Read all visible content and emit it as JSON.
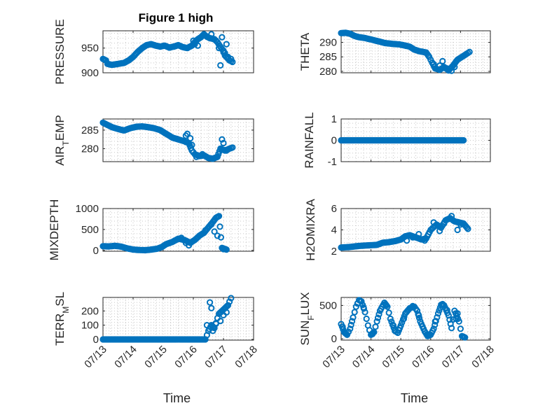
{
  "figure": {
    "title": "Figure 1 high"
  },
  "styles": {
    "marker_color": "#0072bd",
    "axis_color": "#262626",
    "grid_color": "#c8c8c8"
  },
  "chart_data": [
    {
      "id": "pressure",
      "type": "scatter",
      "title": "Figure 1 high",
      "ylabel": "PRESSURE",
      "xlabel": "",
      "show_x_ticklabels": false,
      "ylim": [
        900,
        985
      ],
      "yticks": [
        900,
        950
      ],
      "xlim": [
        0,
        5
      ],
      "xticks": [
        0,
        1,
        2,
        3,
        4,
        5
      ],
      "grid": true,
      "keys": [
        [
          0,
          928
        ],
        [
          0.1,
          925
        ],
        [
          0.15,
          918
        ],
        [
          0.3,
          916
        ],
        [
          0.5,
          918
        ],
        [
          0.7,
          920
        ],
        [
          0.85,
          925
        ],
        [
          1.0,
          932
        ],
        [
          1.15,
          942
        ],
        [
          1.3,
          950
        ],
        [
          1.45,
          956
        ],
        [
          1.6,
          958
        ],
        [
          1.75,
          955
        ],
        [
          1.9,
          953
        ],
        [
          2.05,
          955
        ],
        [
          2.2,
          951
        ],
        [
          2.35,
          953
        ],
        [
          2.5,
          956
        ],
        [
          2.65,
          952
        ],
        [
          2.8,
          950
        ],
        [
          2.95,
          955
        ],
        [
          3.05,
          962
        ],
        [
          3.15,
          968
        ],
        [
          3.25,
          972
        ],
        [
          3.35,
          978
        ],
        [
          3.45,
          973
        ],
        [
          3.55,
          970
        ],
        [
          3.7,
          968
        ],
        [
          3.8,
          962
        ],
        [
          3.95,
          948
        ],
        [
          4.05,
          935
        ],
        [
          4.2,
          925
        ],
        [
          4.3,
          922
        ]
      ],
      "extra_points": [
        [
          3.0,
          965
        ],
        [
          3.05,
          958
        ],
        [
          3.15,
          955
        ],
        [
          3.6,
          978
        ],
        [
          3.75,
          965
        ],
        [
          3.85,
          950
        ],
        [
          3.9,
          915
        ],
        [
          3.95,
          972
        ],
        [
          4.0,
          945
        ],
        [
          4.05,
          940
        ],
        [
          4.1,
          958
        ],
        [
          4.15,
          932
        ],
        [
          4.25,
          928
        ]
      ],
      "xticklabels": [
        "07/13",
        "07/14",
        "07/15",
        "07/16",
        "07/17",
        "07/18"
      ]
    },
    {
      "id": "theta",
      "type": "scatter",
      "title": "",
      "ylabel": "THETA",
      "xlabel": "",
      "show_x_ticklabels": false,
      "ylim": [
        279.5,
        294
      ],
      "yticks": [
        280,
        285,
        290
      ],
      "xlim": [
        0,
        5
      ],
      "xticks": [
        0,
        1,
        2,
        3,
        4,
        5
      ],
      "grid": true,
      "keys": [
        [
          0,
          293.2
        ],
        [
          0.15,
          293.3
        ],
        [
          0.3,
          293.0
        ],
        [
          0.45,
          292.2
        ],
        [
          0.6,
          291.8
        ],
        [
          0.8,
          291.5
        ],
        [
          1.0,
          291.0
        ],
        [
          1.2,
          290.5
        ],
        [
          1.45,
          289.8
        ],
        [
          1.7,
          289.5
        ],
        [
          1.95,
          289.3
        ],
        [
          2.1,
          289.0
        ],
        [
          2.3,
          288.5
        ],
        [
          2.45,
          287.5
        ],
        [
          2.6,
          287.0
        ],
        [
          2.75,
          286.7
        ],
        [
          2.85,
          286.5
        ],
        [
          2.95,
          285.0
        ],
        [
          3.05,
          283.0
        ],
        [
          3.15,
          281.0
        ],
        [
          3.3,
          280.5
        ],
        [
          3.45,
          281.5
        ],
        [
          3.6,
          280.3
        ],
        [
          3.75,
          282.0
        ],
        [
          3.9,
          284.0
        ],
        [
          4.05,
          285.0
        ],
        [
          4.2,
          286.0
        ],
        [
          4.3,
          286.7
        ]
      ],
      "extra_points": [
        [
          3.1,
          282.5
        ],
        [
          3.3,
          282.0
        ],
        [
          3.4,
          283.5
        ],
        [
          3.55,
          281.0
        ],
        [
          3.7,
          280.2
        ],
        [
          3.8,
          281.5
        ]
      ],
      "xticklabels": [
        "07/13",
        "07/14",
        "07/15",
        "07/16",
        "07/17",
        "07/18"
      ]
    },
    {
      "id": "air_temp",
      "type": "scatter",
      "title": "",
      "ylabel_main": "AIR",
      "ylabel_sub": "T",
      "ylabel_rest": "EMP",
      "xlabel": "",
      "show_x_ticklabels": false,
      "ylim": [
        276.5,
        288
      ],
      "yticks": [
        280,
        285
      ],
      "xlim": [
        0,
        5
      ],
      "xticks": [
        0,
        1,
        2,
        3,
        4,
        5
      ],
      "grid": true,
      "keys": [
        [
          0,
          287.0
        ],
        [
          0.15,
          286.4
        ],
        [
          0.3,
          285.8
        ],
        [
          0.5,
          285.3
        ],
        [
          0.7,
          284.9
        ],
        [
          0.9,
          285.5
        ],
        [
          1.1,
          285.9
        ],
        [
          1.3,
          286.0
        ],
        [
          1.5,
          285.8
        ],
        [
          1.7,
          285.5
        ],
        [
          1.9,
          285.0
        ],
        [
          2.1,
          284.0
        ],
        [
          2.3,
          283.0
        ],
        [
          2.5,
          282.5
        ],
        [
          2.7,
          282.0
        ],
        [
          2.85,
          281.5
        ],
        [
          2.95,
          279.5
        ],
        [
          3.05,
          278.5
        ],
        [
          3.2,
          278.0
        ],
        [
          3.35,
          278.2
        ],
        [
          3.5,
          277.5
        ],
        [
          3.65,
          277.3
        ],
        [
          3.8,
          277.8
        ],
        [
          3.9,
          280.0
        ],
        [
          4.05,
          279.5
        ],
        [
          4.2,
          280.0
        ],
        [
          4.3,
          280.3
        ]
      ],
      "extra_points": [
        [
          2.75,
          283.5
        ],
        [
          2.8,
          284.0
        ],
        [
          2.9,
          282.8
        ],
        [
          2.95,
          281.0
        ],
        [
          3.0,
          279.0
        ],
        [
          3.1,
          277.8
        ],
        [
          3.3,
          278.5
        ],
        [
          3.95,
          282.5
        ],
        [
          4.0,
          281.5
        ],
        [
          4.1,
          279.5
        ]
      ],
      "xticklabels": [
        "07/13",
        "07/14",
        "07/15",
        "07/16",
        "07/17",
        "07/18"
      ]
    },
    {
      "id": "rainfall",
      "type": "scatter",
      "title": "",
      "ylabel": "RAINFALL",
      "xlabel": "",
      "show_x_ticklabels": false,
      "ylim": [
        -1,
        1
      ],
      "yticks": [
        -1,
        0,
        1
      ],
      "xlim": [
        0,
        5
      ],
      "xticks": [
        0,
        1,
        2,
        3,
        4,
        5
      ],
      "grid": true,
      "keys": [
        [
          0,
          0
        ],
        [
          4.1,
          0
        ]
      ],
      "extra_points": [],
      "xticklabels": [
        "07/13",
        "07/14",
        "07/15",
        "07/16",
        "07/17",
        "07/18"
      ]
    },
    {
      "id": "mixdepth",
      "type": "scatter",
      "title": "",
      "ylabel": "MIXDEPTH",
      "xlabel": "",
      "show_x_ticklabels": false,
      "ylim": [
        -20,
        1000
      ],
      "yticks": [
        0,
        500,
        1000
      ],
      "xlim": [
        0,
        5
      ],
      "xticks": [
        0,
        1,
        2,
        3,
        4,
        5
      ],
      "grid": true,
      "keys": [
        [
          0,
          100
        ],
        [
          0.2,
          95
        ],
        [
          0.4,
          110
        ],
        [
          0.6,
          90
        ],
        [
          0.8,
          50
        ],
        [
          1.0,
          20
        ],
        [
          1.2,
          10
        ],
        [
          1.4,
          5
        ],
        [
          1.6,
          20
        ],
        [
          1.8,
          40
        ],
        [
          1.95,
          80
        ],
        [
          2.1,
          150
        ],
        [
          2.3,
          200
        ],
        [
          2.5,
          280
        ],
        [
          2.7,
          250
        ],
        [
          2.9,
          180
        ],
        [
          3.05,
          250
        ],
        [
          3.2,
          350
        ],
        [
          3.35,
          420
        ],
        [
          3.5,
          550
        ],
        [
          3.65,
          680
        ],
        [
          3.75,
          780
        ],
        [
          3.85,
          820
        ],
        [
          3.95,
          60
        ],
        [
          4.1,
          20
        ]
      ],
      "extra_points": [
        [
          2.6,
          300
        ],
        [
          2.75,
          180
        ],
        [
          2.85,
          120
        ],
        [
          3.4,
          480
        ],
        [
          3.6,
          620
        ],
        [
          3.7,
          450
        ],
        [
          3.8,
          350
        ],
        [
          4.0,
          30
        ]
      ],
      "xticklabels": [
        "07/13",
        "07/14",
        "07/15",
        "07/16",
        "07/17",
        "07/18"
      ]
    },
    {
      "id": "h2omixra",
      "type": "scatter",
      "title": "",
      "ylabel": "H2OMIXRA",
      "xlabel": "",
      "show_x_ticklabels": false,
      "ylim": [
        2,
        6
      ],
      "yticks": [
        2,
        4,
        6
      ],
      "xlim": [
        0,
        5
      ],
      "xticks": [
        0,
        1,
        2,
        3,
        4,
        5
      ],
      "grid": true,
      "keys": [
        [
          0,
          2.35
        ],
        [
          0.3,
          2.4
        ],
        [
          0.6,
          2.5
        ],
        [
          0.9,
          2.55
        ],
        [
          1.2,
          2.6
        ],
        [
          1.4,
          2.8
        ],
        [
          1.6,
          2.85
        ],
        [
          1.8,
          2.95
        ],
        [
          2.0,
          3.1
        ],
        [
          2.15,
          3.4
        ],
        [
          2.3,
          3.5
        ],
        [
          2.5,
          3.3
        ],
        [
          2.7,
          3.1
        ],
        [
          2.85,
          3.2
        ],
        [
          3.0,
          4.0
        ],
        [
          3.2,
          4.5
        ],
        [
          3.35,
          4.2
        ],
        [
          3.5,
          4.9
        ],
        [
          3.65,
          5.1
        ],
        [
          3.8,
          4.8
        ],
        [
          3.95,
          4.7
        ],
        [
          4.1,
          4.6
        ],
        [
          4.25,
          4.1
        ]
      ],
      "extra_points": [
        [
          2.2,
          3.0
        ],
        [
          2.4,
          3.3
        ],
        [
          2.6,
          3.6
        ],
        [
          2.8,
          3.0
        ],
        [
          3.1,
          4.7
        ],
        [
          3.3,
          3.9
        ],
        [
          3.45,
          4.6
        ],
        [
          3.7,
          5.3
        ],
        [
          3.9,
          4.0
        ],
        [
          4.0,
          4.5
        ]
      ],
      "xticklabels": [
        "07/13",
        "07/14",
        "07/15",
        "07/16",
        "07/17",
        "07/18"
      ]
    },
    {
      "id": "terr_msl",
      "type": "scatter",
      "title": "",
      "ylabel_main": "TERR",
      "ylabel_sub": "M",
      "ylabel_rest": "SL",
      "xlabel": "Time",
      "show_x_ticklabels": true,
      "ylim": [
        -5,
        295
      ],
      "yticks": [
        0,
        100,
        200
      ],
      "xlim": [
        0,
        5
      ],
      "xticks": [
        0,
        1,
        2,
        3,
        4,
        5
      ],
      "grid": true,
      "keys": [
        [
          0,
          0
        ],
        [
          3.4,
          0
        ],
        [
          3.45,
          30
        ],
        [
          3.5,
          60
        ],
        [
          3.6,
          100
        ],
        [
          3.7,
          80
        ],
        [
          3.8,
          150
        ],
        [
          3.85,
          180
        ],
        [
          3.95,
          200
        ],
        [
          4.05,
          220
        ],
        [
          4.15,
          240
        ],
        [
          4.25,
          290
        ]
      ],
      "extra_points": [
        [
          3.45,
          100
        ],
        [
          3.55,
          260
        ],
        [
          3.6,
          220
        ],
        [
          3.65,
          60
        ],
        [
          3.75,
          110
        ],
        [
          3.9,
          130
        ],
        [
          4.0,
          170
        ],
        [
          4.1,
          190
        ]
      ],
      "xticklabels": [
        "07/13",
        "07/14",
        "07/15",
        "07/16",
        "07/17",
        "07/18"
      ]
    },
    {
      "id": "sun_flux",
      "type": "scatter",
      "title": "",
      "ylabel_main": "SUN",
      "ylabel_sub": "F",
      "ylabel_rest": "LUX",
      "xlabel": "Time",
      "show_x_ticklabels": true,
      "ylim": [
        -20,
        620
      ],
      "yticks": [
        0,
        500
      ],
      "xlim": [
        0,
        5
      ],
      "xticks": [
        0,
        1,
        2,
        3,
        4,
        5
      ],
      "grid": true,
      "keys": [
        [
          0,
          220
        ],
        [
          0.1,
          100
        ],
        [
          0.2,
          60
        ],
        [
          0.3,
          150
        ],
        [
          0.4,
          320
        ],
        [
          0.5,
          480
        ],
        [
          0.6,
          580
        ],
        [
          0.68,
          560
        ],
        [
          0.8,
          400
        ],
        [
          0.9,
          200
        ],
        [
          1.0,
          60
        ],
        [
          1.1,
          100
        ],
        [
          1.2,
          260
        ],
        [
          1.3,
          420
        ],
        [
          1.45,
          540
        ],
        [
          1.55,
          480
        ],
        [
          1.65,
          300
        ],
        [
          1.8,
          120
        ],
        [
          1.9,
          90
        ],
        [
          2.0,
          200
        ],
        [
          2.15,
          380
        ],
        [
          2.3,
          460
        ],
        [
          2.45,
          480
        ],
        [
          2.55,
          420
        ],
        [
          2.65,
          260
        ],
        [
          2.8,
          110
        ],
        [
          2.9,
          40
        ],
        [
          3.0,
          60
        ],
        [
          3.1,
          150
        ],
        [
          3.25,
          380
        ],
        [
          3.35,
          510
        ],
        [
          3.45,
          500
        ],
        [
          3.6,
          350
        ],
        [
          3.7,
          160
        ],
        [
          3.8,
          420
        ],
        [
          3.95,
          260
        ],
        [
          4.05,
          40
        ],
        [
          4.15,
          20
        ]
      ],
      "extra_points": [
        [
          0.05,
          180
        ],
        [
          0.15,
          80
        ],
        [
          0.55,
          530
        ],
        [
          0.75,
          470
        ],
        [
          1.05,
          70
        ],
        [
          1.5,
          510
        ],
        [
          1.75,
          200
        ],
        [
          2.1,
          300
        ],
        [
          2.4,
          490
        ],
        [
          2.6,
          350
        ],
        [
          3.15,
          260
        ],
        [
          3.4,
          520
        ],
        [
          3.55,
          430
        ],
        [
          3.85,
          300
        ],
        [
          3.9,
          380
        ],
        [
          4.1,
          30
        ]
      ],
      "xticklabels": [
        "07/13",
        "07/14",
        "07/15",
        "07/16",
        "07/17",
        "07/18"
      ]
    }
  ]
}
